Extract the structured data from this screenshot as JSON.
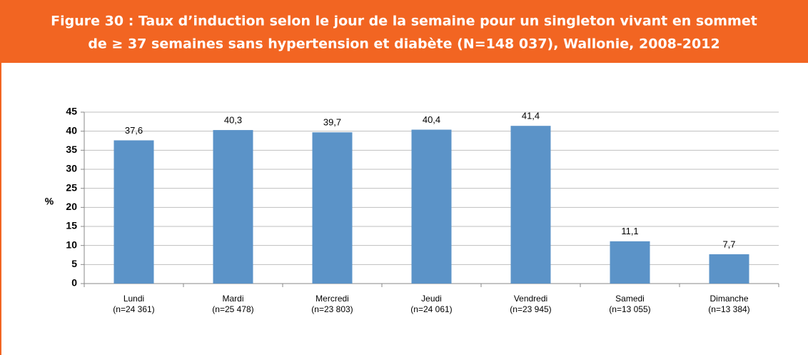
{
  "chart_data": {
    "type": "bar",
    "title_lines": [
      "Figure 30 : Taux d’induction selon le jour de la semaine pour un singleton vivant en sommet",
      "de ≥ 37 semaines sans hypertension et diabète (N=148 037), Wallonie, 2008-2012"
    ],
    "ylabel": "%",
    "categories": [
      "Lundi",
      "Mardi",
      "Mercredi",
      "Jeudi",
      "Vendredi",
      "Samedi",
      "Dimanche"
    ],
    "category_counts": [
      "(n=24 361)",
      "(n=25 478)",
      "(n=23 803)",
      "(n=24 061)",
      "(n=23 945)",
      "(n=13 055)",
      "(n=13 384)"
    ],
    "values": [
      37.6,
      40.3,
      39.7,
      40.4,
      41.4,
      11.1,
      7.7
    ],
    "value_labels": [
      "37,6",
      "40,3",
      "39,7",
      "40,4",
      "41,4",
      "11,1",
      "7,7"
    ],
    "color": "#5b93c8",
    "ylim": [
      0,
      45
    ],
    "yticks": [
      0,
      5,
      10,
      15,
      20,
      25,
      30,
      35,
      40,
      45
    ],
    "grid": true
  }
}
